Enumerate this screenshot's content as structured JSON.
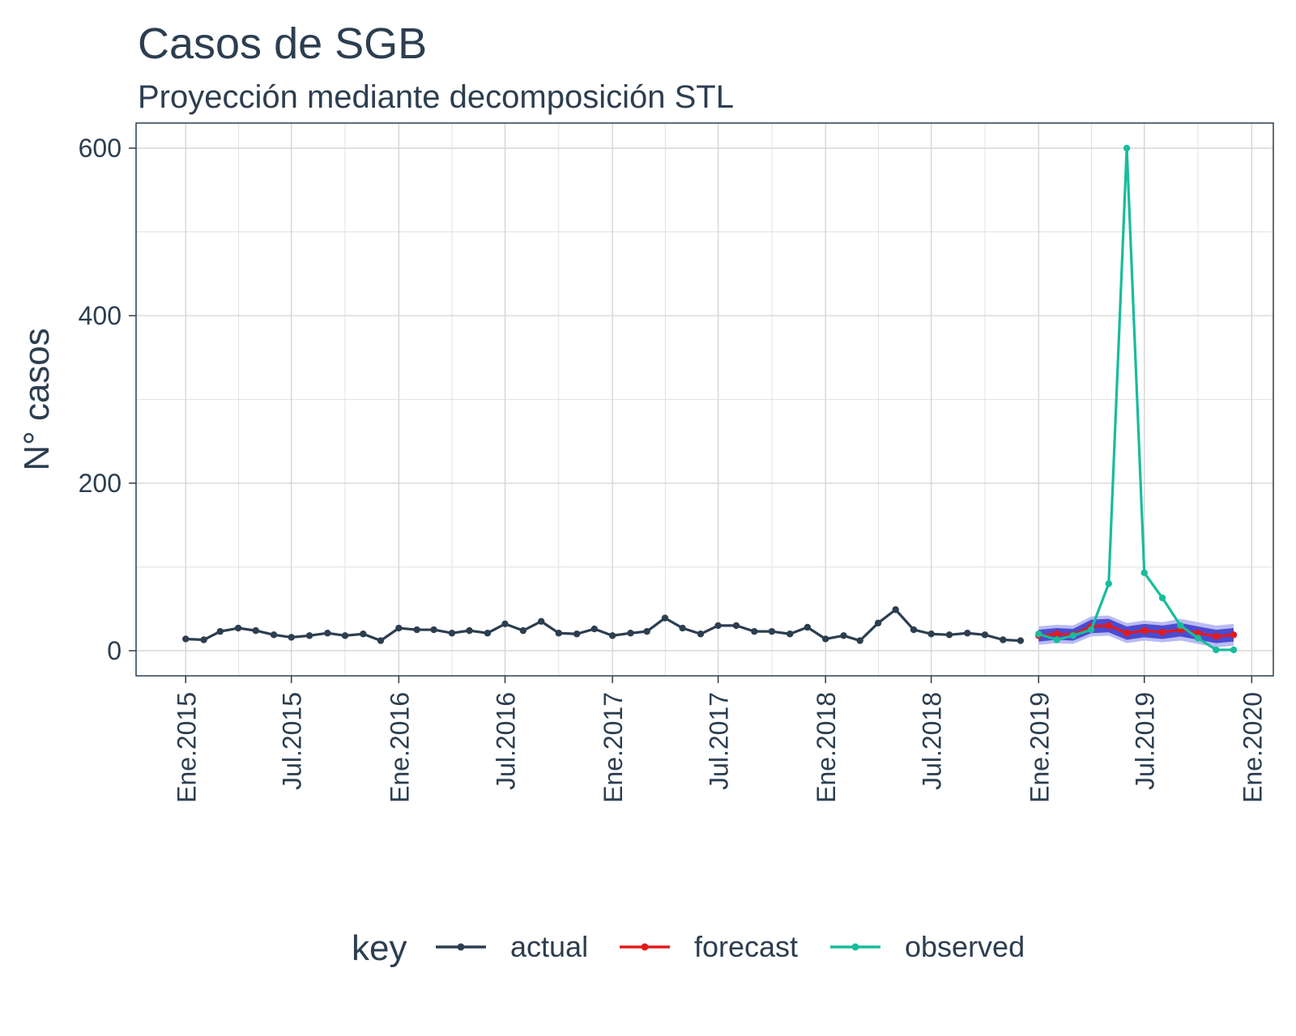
{
  "chart_data": {
    "type": "line",
    "title": "Casos de SGB",
    "subtitle": "Proyección mediante decomposición STL",
    "xlabel": "",
    "ylabel": "N° casos",
    "ylim": [
      -30,
      630
    ],
    "y_ticks": [
      0,
      200,
      400,
      600
    ],
    "x_ticks": [
      {
        "date": "2015-01-01",
        "label": "Ene.2015"
      },
      {
        "date": "2015-07-01",
        "label": "Jul.2015"
      },
      {
        "date": "2016-01-01",
        "label": "Ene.2016"
      },
      {
        "date": "2016-07-01",
        "label": "Jul.2016"
      },
      {
        "date": "2017-01-01",
        "label": "Ene.2017"
      },
      {
        "date": "2017-07-01",
        "label": "Jul.2017"
      },
      {
        "date": "2018-01-01",
        "label": "Ene.2018"
      },
      {
        "date": "2018-07-01",
        "label": "Jul.2018"
      },
      {
        "date": "2019-01-01",
        "label": "Ene.2019"
      },
      {
        "date": "2019-07-01",
        "label": "Jul.2019"
      },
      {
        "date": "2020-01-01",
        "label": "Ene.2020"
      }
    ],
    "xlim": [
      "2014-10-08",
      "2020-02-07"
    ],
    "grid": true,
    "legend": {
      "title": "key",
      "position": "bottom"
    },
    "series": [
      {
        "name": "actual",
        "color": "#2c3e50",
        "x": [
          "2015-01-01",
          "2015-02-01",
          "2015-03-01",
          "2015-04-01",
          "2015-05-01",
          "2015-06-01",
          "2015-07-01",
          "2015-08-01",
          "2015-09-01",
          "2015-10-01",
          "2015-11-01",
          "2015-12-01",
          "2016-01-01",
          "2016-02-01",
          "2016-03-01",
          "2016-04-01",
          "2016-05-01",
          "2016-06-01",
          "2016-07-01",
          "2016-08-01",
          "2016-09-01",
          "2016-10-01",
          "2016-11-01",
          "2016-12-01",
          "2017-01-01",
          "2017-02-01",
          "2017-03-01",
          "2017-04-01",
          "2017-05-01",
          "2017-06-01",
          "2017-07-01",
          "2017-08-01",
          "2017-09-01",
          "2017-10-01",
          "2017-11-01",
          "2017-12-01",
          "2018-01-01",
          "2018-02-01",
          "2018-03-01",
          "2018-04-01",
          "2018-05-01",
          "2018-06-01",
          "2018-07-01",
          "2018-08-01",
          "2018-09-01",
          "2018-10-01",
          "2018-11-01",
          "2018-12-01"
        ],
        "values": [
          14,
          13,
          23,
          27,
          24,
          19,
          16,
          18,
          21,
          18,
          20,
          12,
          27,
          25,
          25,
          21,
          24,
          21,
          32,
          24,
          35,
          21,
          20,
          26,
          18,
          21,
          23,
          39,
          27,
          20,
          30,
          30,
          23,
          23,
          20,
          28,
          14,
          18,
          12,
          33,
          49,
          25,
          20,
          19,
          21,
          19,
          13,
          12
        ]
      },
      {
        "name": "forecast",
        "color": "#e31a1c",
        "x": [
          "2019-01-01",
          "2019-02-01",
          "2019-03-01",
          "2019-04-01",
          "2019-05-01",
          "2019-06-01",
          "2019-07-01",
          "2019-08-01",
          "2019-09-01",
          "2019-10-01",
          "2019-11-01",
          "2019-12-01"
        ],
        "values": [
          18,
          20,
          19,
          29,
          30,
          21,
          24,
          22,
          25,
          21,
          17,
          19
        ]
      },
      {
        "name": "observed",
        "color": "#18bc9c",
        "x": [
          "2019-01-01",
          "2019-02-01",
          "2019-03-01",
          "2019-04-01",
          "2019-05-01",
          "2019-06-01",
          "2019-07-01",
          "2019-08-01",
          "2019-09-01",
          "2019-10-01",
          "2019-11-01",
          "2019-12-01"
        ],
        "values": [
          20,
          13,
          18,
          25,
          80,
          600,
          93,
          63,
          30,
          15,
          1,
          1
        ]
      }
    ],
    "forecast_intervals": {
      "color_80": "#4b4bd1",
      "color_95": "#b9bbf2",
      "x": [
        "2019-01-01",
        "2019-02-01",
        "2019-03-01",
        "2019-04-01",
        "2019-05-01",
        "2019-06-01",
        "2019-07-01",
        "2019-08-01",
        "2019-09-01",
        "2019-10-01",
        "2019-11-01",
        "2019-12-01"
      ],
      "lo95": [
        7,
        9,
        8,
        17,
        18,
        9,
        12,
        10,
        12,
        8,
        4,
        6
      ],
      "lo80": [
        11,
        13,
        12,
        21,
        22,
        13,
        16,
        14,
        17,
        13,
        9,
        11
      ],
      "hi80": [
        25,
        27,
        26,
        37,
        38,
        29,
        32,
        30,
        33,
        29,
        25,
        27
      ],
      "hi95": [
        29,
        31,
        30,
        41,
        42,
        33,
        36,
        34,
        38,
        34,
        30,
        32
      ]
    }
  }
}
